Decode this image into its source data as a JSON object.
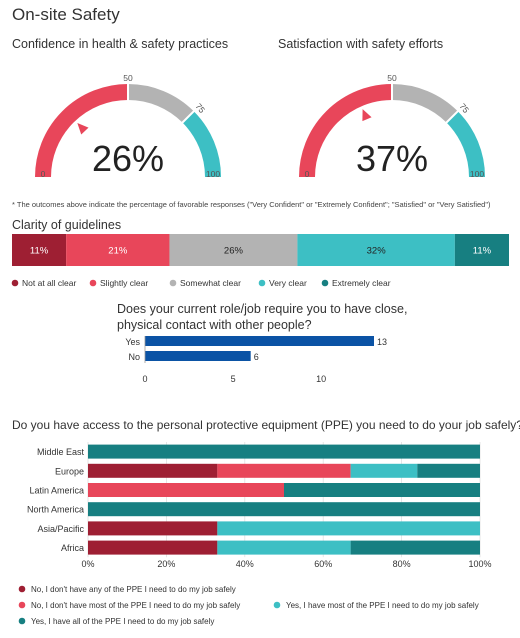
{
  "page": {
    "title": "On-site Safety"
  },
  "footnote": "* The outcomes above indicate the percentage of favorable responses (\"Very Confident\" or \"Extremely Confident\"; \"Satisfied\" or \"Very Satisfied\")",
  "colors": {
    "dark_red": "#9e1f33",
    "red": "#e8465a",
    "gray": "#b3b3b3",
    "teal": "#3dbfc4",
    "dark_teal": "#177f81",
    "blue": "#0b53a5"
  },
  "chart_data": [
    {
      "type": "gauge",
      "title": "Confidence in health & safety practices",
      "value": 26,
      "value_label": "26%",
      "min": 0,
      "max": 100,
      "ticks": [
        "0",
        "50",
        "75",
        "100"
      ],
      "tick_values": [
        0,
        50,
        75,
        100
      ],
      "band_colors": [
        "#e8465a",
        "#b3b3b3",
        "#3dbfc4"
      ]
    },
    {
      "type": "gauge",
      "title": "Satisfaction with safety efforts",
      "value": 37,
      "value_label": "37%",
      "min": 0,
      "max": 100,
      "ticks": [
        "0",
        "50",
        "75",
        "100"
      ],
      "tick_values": [
        0,
        50,
        75,
        100
      ],
      "band_colors": [
        "#e8465a",
        "#b3b3b3",
        "#3dbfc4"
      ]
    },
    {
      "type": "bar",
      "orientation": "horizontal-stacked-100",
      "title": "Clarity of guidelines",
      "categories": [
        "Not at all clear",
        "Slightly clear",
        "Somewhat clear",
        "Very clear",
        "Extremely clear"
      ],
      "values": [
        11,
        21,
        26,
        32,
        11
      ],
      "labels": [
        "11%",
        "21%",
        "26%",
        "32%",
        "11%"
      ],
      "colors": [
        "#9e1f33",
        "#e8465a",
        "#b3b3b3",
        "#3dbfc4",
        "#177f81"
      ],
      "legend": "bottom"
    },
    {
      "type": "bar",
      "orientation": "horizontal",
      "title": "Does your current role/job require you to have close, physical contact with other people?",
      "categories": [
        "Yes",
        "No"
      ],
      "values": [
        13,
        6
      ],
      "xlim": [
        0,
        15
      ],
      "xticks": [
        "0",
        "5",
        "10"
      ],
      "xtick_values": [
        0,
        5,
        10
      ],
      "color": "#0b53a5"
    },
    {
      "type": "bar",
      "orientation": "horizontal-stacked-100",
      "title": "Do you have access to the personal protective equipment (PPE) you need to do your job safely?",
      "categories": [
        "Middle East",
        "Europe",
        "Latin America",
        "North America",
        "Asia/Pacific",
        "Africa"
      ],
      "series": [
        {
          "name": "No, I don't have any of the PPE I need to do my job safely",
          "values": [
            0,
            33,
            0,
            0,
            33,
            33
          ],
          "color": "#9e1f33"
        },
        {
          "name": "No, I don't have most of the PPE I need to do my job safely",
          "values": [
            0,
            34,
            50,
            0,
            0,
            0
          ],
          "color": "#e8465a"
        },
        {
          "name": "Yes, I have most of the PPE I need to do my job safely",
          "values": [
            0,
            17,
            0,
            0,
            67,
            34
          ],
          "color": "#3dbfc4"
        },
        {
          "name": "Yes, I have all of the PPE I need to do my job safely",
          "values": [
            100,
            16,
            50,
            100,
            0,
            33
          ],
          "color": "#177f81"
        }
      ],
      "xticks": [
        "0%",
        "20%",
        "40%",
        "60%",
        "80%",
        "100%"
      ],
      "xtick_values": [
        0,
        20,
        40,
        60,
        80,
        100
      ],
      "legend": "bottom"
    }
  ]
}
